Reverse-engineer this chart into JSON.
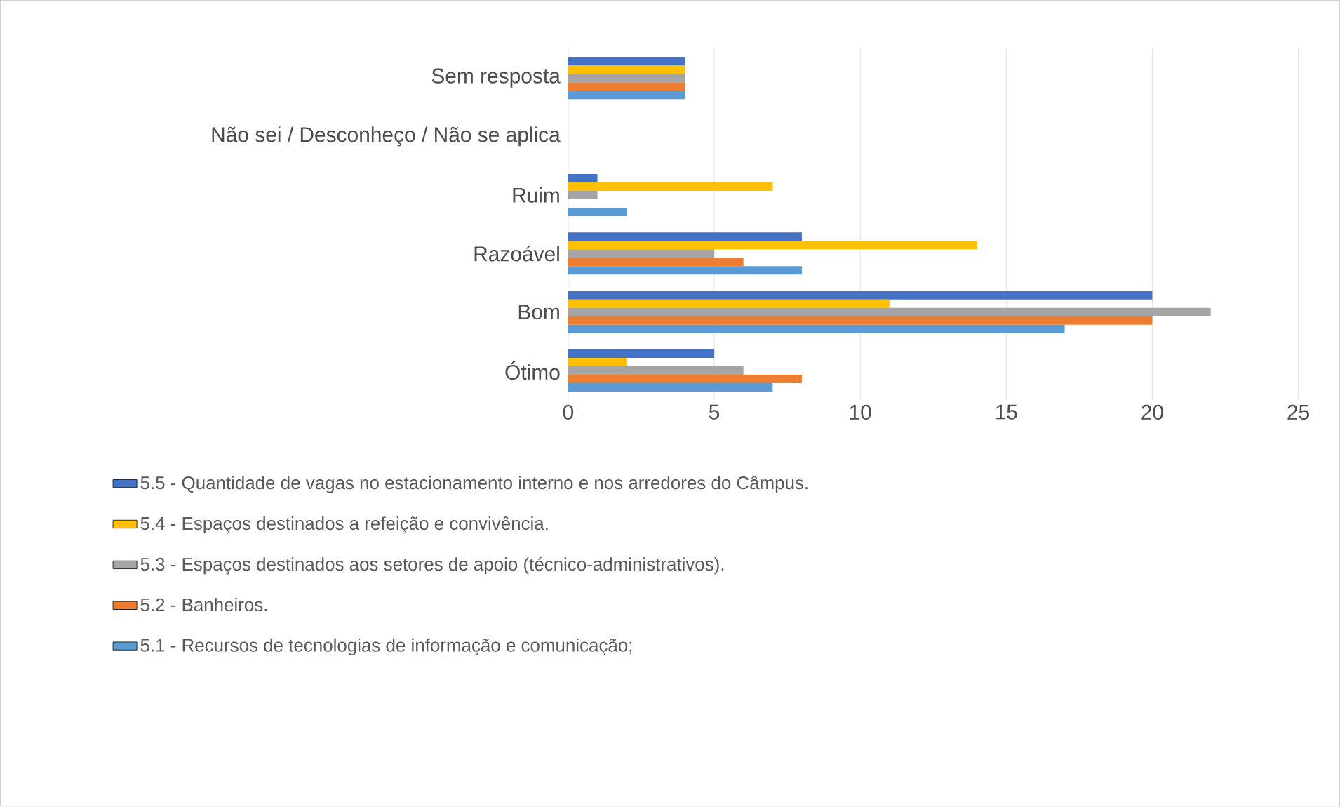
{
  "chart_data": {
    "type": "bar",
    "orientation": "horizontal",
    "categories": [
      "Sem resposta",
      "Não sei / Desconheço / Não se aplica",
      "Ruim",
      "Razoável",
      "Bom",
      "Ótimo"
    ],
    "series": [
      {
        "name": "5.5 - Quantidade de vagas no estacionamento interno e nos arredores do Câmpus.",
        "color": "#4472c4",
        "values": [
          4,
          0,
          1,
          8,
          20,
          5
        ]
      },
      {
        "name": "5.4 - Espaços destinados a refeição e convivência.",
        "color": "#ffc000",
        "values": [
          4,
          0,
          7,
          14,
          11,
          2
        ]
      },
      {
        "name": "5.3 - Espaços destinados aos setores de apoio (técnico-administrativos).",
        "color": "#a5a5a5",
        "values": [
          4,
          0,
          1,
          5,
          22,
          6
        ]
      },
      {
        "name": "5.2 - Banheiros.",
        "color": "#ed7d31",
        "values": [
          4,
          0,
          0,
          6,
          20,
          8
        ]
      },
      {
        "name": "5.1 - Recursos de tecnologias de informação e comunicação;",
        "color": "#5b9bd5",
        "values": [
          4,
          0,
          2,
          8,
          17,
          7
        ]
      }
    ],
    "xlim": [
      0,
      25
    ],
    "xticks": [
      0,
      5,
      10,
      15,
      20,
      25
    ],
    "grid": "x",
    "legend": "bottom"
  }
}
